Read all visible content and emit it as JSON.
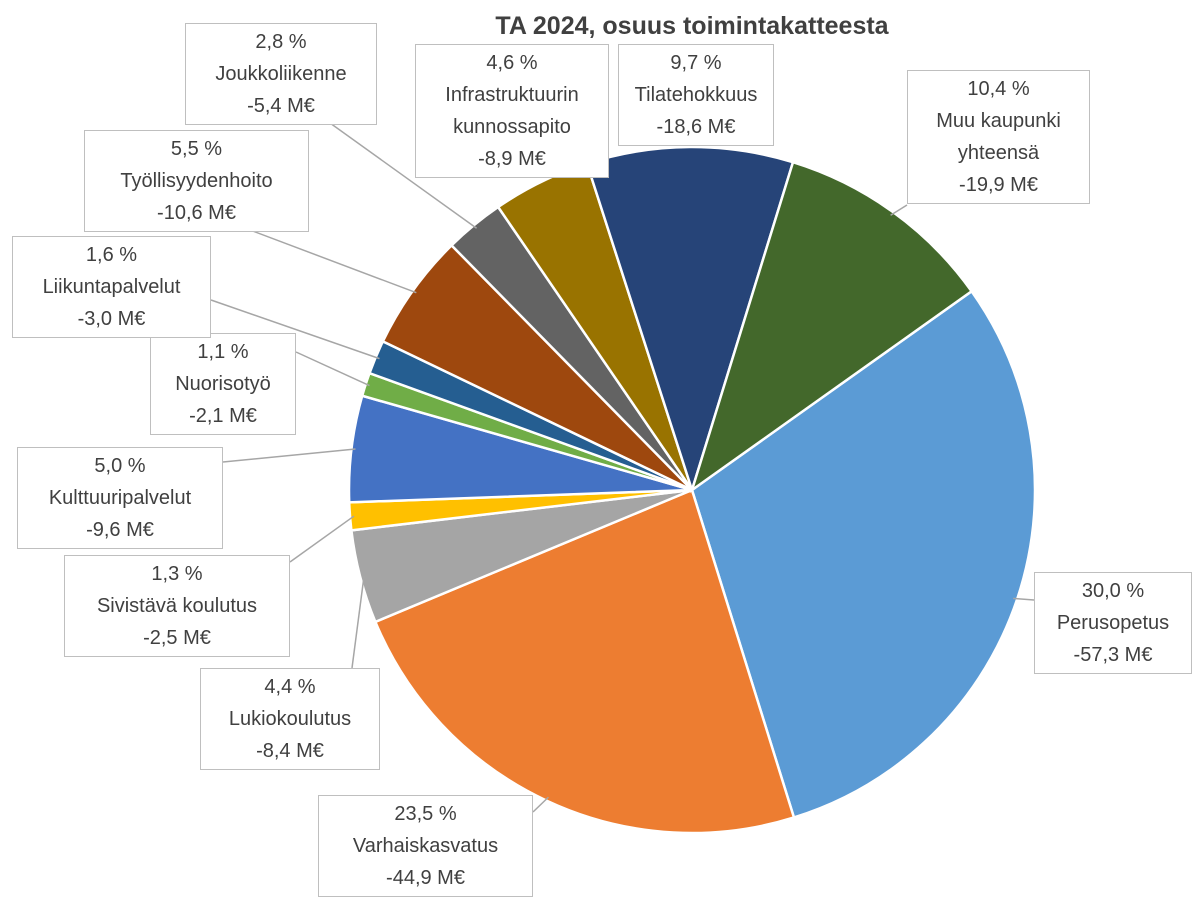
{
  "chart_data": {
    "type": "pie",
    "title": "TA 2024, osuus toimintakatteesta",
    "categories": [
      "Perusopetus",
      "Varhaiskasvatus",
      "Lukiokoulutus",
      "Sivistävä koulutus",
      "Kulttuuripalvelut",
      "Nuorisotyö",
      "Liikuntapalvelut",
      "Työllisyydenhoito",
      "Joukkoliikenne",
      "Infrastruktuurin kunnossapito",
      "Tilatehokkuus",
      "Muu kaupunki yhteensä"
    ],
    "values": [
      30.0,
      23.5,
      4.4,
      1.3,
      5.0,
      1.1,
      1.6,
      5.5,
      2.8,
      4.6,
      9.7,
      10.4
    ],
    "value_labels": [
      "30,0 %",
      "23,5 %",
      "4,4 %",
      "1,3 %",
      "5,0 %",
      "1,1 %",
      "1,6 %",
      "5,5 %",
      "2,8 %",
      "4,6 %",
      "9,7 %",
      "10,4 %"
    ],
    "amounts": [
      -57.3,
      -44.9,
      -8.4,
      -2.5,
      -9.6,
      -2.1,
      -3.0,
      -10.6,
      -5.4,
      -8.9,
      -18.6,
      -19.9
    ],
    "amount_labels": [
      "-57,3 M€",
      "-44,9 M€",
      "-8,4 M€",
      "-2,5 M€",
      "-9,6 M€",
      "-2,1 M€",
      "-3,0 M€",
      "-10,6 M€",
      "-5,4 M€",
      "-8,9 M€",
      "-18,6 M€",
      "-19,9 M€"
    ],
    "colors": [
      "#5b9bd5",
      "#ed7d31",
      "#a5a5a5",
      "#ffc000",
      "#4472c4",
      "#70ad47",
      "#255e91",
      "#9e480e",
      "#636363",
      "#997300",
      "#264478",
      "#43682b"
    ]
  }
}
